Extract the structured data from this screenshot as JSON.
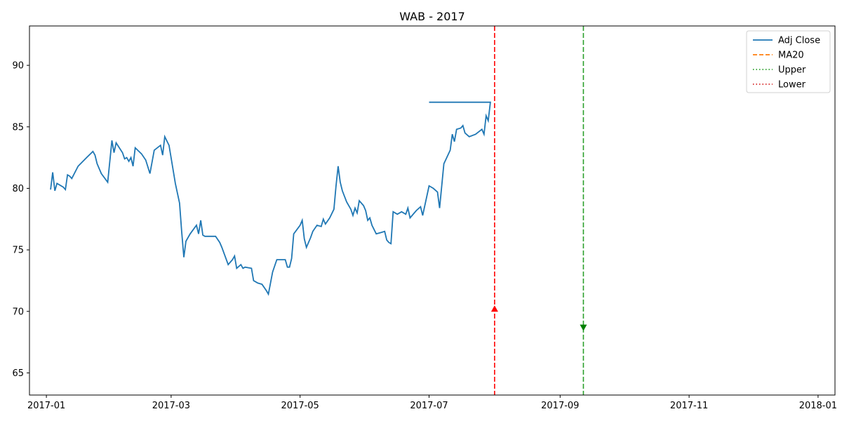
{
  "chart_data": {
    "type": "line",
    "title": "WAB - 2017",
    "xlabel": "",
    "ylabel": "",
    "xlim": [
      "2016-12-24",
      "2018-01-09"
    ],
    "ylim": [
      63.2,
      93.2
    ],
    "x_ticks": [
      "2017-01-01",
      "2017-03-01",
      "2017-05-01",
      "2017-07-01",
      "2017-09-01",
      "2017-11-01",
      "2018-01-01"
    ],
    "x_tick_labels": [
      "2017-01",
      "2017-03",
      "2017-05",
      "2017-07",
      "2017-09",
      "2017-11",
      "2018-01"
    ],
    "y_ticks": [
      65,
      70,
      75,
      80,
      85,
      90
    ],
    "y_tick_labels": [
      "65",
      "70",
      "75",
      "80",
      "85",
      "90"
    ],
    "grid": false,
    "legend_position": "top-right",
    "series": [
      {
        "name": "Adj Close",
        "color": "#1f77b4",
        "style": "solid",
        "points": [
          [
            "2017-01-03",
            79.9
          ],
          [
            "2017-01-04",
            81.3
          ],
          [
            "2017-01-05",
            79.8
          ],
          [
            "2017-01-06",
            80.4
          ],
          [
            "2017-01-09",
            80.1
          ],
          [
            "2017-01-10",
            79.9
          ],
          [
            "2017-01-11",
            81.1
          ],
          [
            "2017-01-12",
            81.0
          ],
          [
            "2017-01-13",
            80.8
          ],
          [
            "2017-01-16",
            81.8
          ],
          [
            "2017-01-20",
            82.5
          ],
          [
            "2017-01-23",
            83.0
          ],
          [
            "2017-01-24",
            82.7
          ],
          [
            "2017-01-25",
            82.0
          ],
          [
            "2017-01-27",
            81.2
          ],
          [
            "2017-01-30",
            80.5
          ],
          [
            "2017-02-01",
            83.9
          ],
          [
            "2017-02-02",
            82.9
          ],
          [
            "2017-02-03",
            83.7
          ],
          [
            "2017-02-06",
            82.9
          ],
          [
            "2017-02-07",
            82.4
          ],
          [
            "2017-02-08",
            82.5
          ],
          [
            "2017-02-09",
            82.2
          ],
          [
            "2017-02-10",
            82.5
          ],
          [
            "2017-02-11",
            81.8
          ],
          [
            "2017-02-12",
            83.3
          ],
          [
            "2017-02-15",
            82.8
          ],
          [
            "2017-02-17",
            82.3
          ],
          [
            "2017-02-19",
            81.2
          ],
          [
            "2017-02-21",
            83.1
          ],
          [
            "2017-02-24",
            83.5
          ],
          [
            "2017-02-25",
            82.7
          ],
          [
            "2017-02-26",
            84.2
          ],
          [
            "2017-02-28",
            83.5
          ],
          [
            "2017-03-03",
            80.4
          ],
          [
            "2017-03-05",
            78.8
          ],
          [
            "2017-03-06",
            76.5
          ],
          [
            "2017-03-07",
            74.4
          ],
          [
            "2017-03-08",
            75.7
          ],
          [
            "2017-03-10",
            76.3
          ],
          [
            "2017-03-13",
            77.0
          ],
          [
            "2017-03-14",
            76.3
          ],
          [
            "2017-03-15",
            77.4
          ],
          [
            "2017-03-16",
            76.2
          ],
          [
            "2017-03-17",
            76.1
          ],
          [
            "2017-03-20",
            76.1
          ],
          [
            "2017-03-22",
            76.1
          ],
          [
            "2017-03-24",
            75.6
          ],
          [
            "2017-03-25",
            75.2
          ],
          [
            "2017-03-28",
            73.8
          ],
          [
            "2017-03-30",
            74.2
          ],
          [
            "2017-03-31",
            74.5
          ],
          [
            "2017-04-01",
            73.5
          ],
          [
            "2017-04-03",
            73.8
          ],
          [
            "2017-04-04",
            73.5
          ],
          [
            "2017-04-05",
            73.6
          ],
          [
            "2017-04-08",
            73.5
          ],
          [
            "2017-04-09",
            72.5
          ],
          [
            "2017-04-11",
            72.3
          ],
          [
            "2017-04-13",
            72.2
          ],
          [
            "2017-04-15",
            71.7
          ],
          [
            "2017-04-16",
            71.4
          ],
          [
            "2017-04-18",
            73.2
          ],
          [
            "2017-04-20",
            74.2
          ],
          [
            "2017-04-24",
            74.2
          ],
          [
            "2017-04-25",
            73.6
          ],
          [
            "2017-04-26",
            73.6
          ],
          [
            "2017-04-27",
            74.3
          ],
          [
            "2017-04-28",
            76.3
          ],
          [
            "2017-05-01",
            77.0
          ],
          [
            "2017-05-02",
            77.4
          ],
          [
            "2017-05-03",
            75.9
          ],
          [
            "2017-05-04",
            75.2
          ],
          [
            "2017-05-06",
            76.0
          ],
          [
            "2017-05-07",
            76.5
          ],
          [
            "2017-05-09",
            77.0
          ],
          [
            "2017-05-11",
            76.9
          ],
          [
            "2017-05-12",
            77.5
          ],
          [
            "2017-05-13",
            77.1
          ],
          [
            "2017-05-15",
            77.6
          ],
          [
            "2017-05-17",
            78.3
          ],
          [
            "2017-05-18",
            80.2
          ],
          [
            "2017-05-19",
            81.8
          ],
          [
            "2017-05-20",
            80.5
          ],
          [
            "2017-05-21",
            79.8
          ],
          [
            "2017-05-23",
            78.9
          ],
          [
            "2017-05-25",
            78.3
          ],
          [
            "2017-05-26",
            77.8
          ],
          [
            "2017-05-27",
            78.4
          ],
          [
            "2017-05-28",
            78.0
          ],
          [
            "2017-05-29",
            79.0
          ],
          [
            "2017-05-31",
            78.6
          ],
          [
            "2017-06-01",
            78.2
          ],
          [
            "2017-06-02",
            77.4
          ],
          [
            "2017-06-03",
            77.6
          ],
          [
            "2017-06-04",
            77.0
          ],
          [
            "2017-06-06",
            76.3
          ],
          [
            "2017-06-08",
            76.4
          ],
          [
            "2017-06-10",
            76.5
          ],
          [
            "2017-06-11",
            75.8
          ],
          [
            "2017-06-12",
            75.6
          ],
          [
            "2017-06-13",
            75.5
          ],
          [
            "2017-06-14",
            78.1
          ],
          [
            "2017-06-16",
            77.9
          ],
          [
            "2017-06-18",
            78.1
          ],
          [
            "2017-06-20",
            77.9
          ],
          [
            "2017-06-21",
            78.4
          ],
          [
            "2017-06-22",
            77.6
          ],
          [
            "2017-06-25",
            78.2
          ],
          [
            "2017-06-27",
            78.5
          ],
          [
            "2017-06-28",
            77.8
          ],
          [
            "2017-07-01",
            80.2
          ],
          [
            "2017-07-03",
            80.0
          ],
          [
            "2017-07-05",
            79.7
          ],
          [
            "2017-07-06",
            78.4
          ],
          [
            "2017-07-08",
            82.0
          ],
          [
            "2017-07-11",
            83.1
          ],
          [
            "2017-07-12",
            84.4
          ],
          [
            "2017-07-13",
            83.8
          ],
          [
            "2017-07-14",
            84.8
          ],
          [
            "2017-07-16",
            84.9
          ],
          [
            "2017-07-17",
            85.1
          ],
          [
            "2017-07-18",
            84.5
          ],
          [
            "2017-07-20",
            84.2
          ],
          [
            "2017-07-23",
            84.4
          ],
          [
            "2017-07-26",
            84.8
          ],
          [
            "2017-07-27",
            84.4
          ],
          [
            "2017-07-28",
            85.9
          ],
          [
            "2017-07-29",
            85.5
          ],
          [
            "2017-07-30",
            87.0
          ],
          [
            "2017-07-01",
            87.0
          ]
        ]
      },
      {
        "name": "MA20",
        "color": "#ff7f0e",
        "style": "dashed",
        "points": []
      },
      {
        "name": "Upper",
        "color": "#2ca02c",
        "style": "dotted",
        "points": []
      },
      {
        "name": "Lower",
        "color": "#d62728",
        "style": "dotted",
        "points": []
      }
    ],
    "markers": [
      {
        "x": "2017-08-01",
        "y": 70.2,
        "shape": "triangle-up",
        "color": "#ff0000"
      },
      {
        "x": "2017-09-12",
        "y": 68.7,
        "shape": "triangle-down",
        "color": "#008000"
      }
    ],
    "vlines": [
      {
        "x": "2017-08-01",
        "color": "#ff0000",
        "style": "dashed"
      },
      {
        "x": "2017-09-12",
        "color": "#2ca02c",
        "style": "dashed"
      }
    ]
  }
}
